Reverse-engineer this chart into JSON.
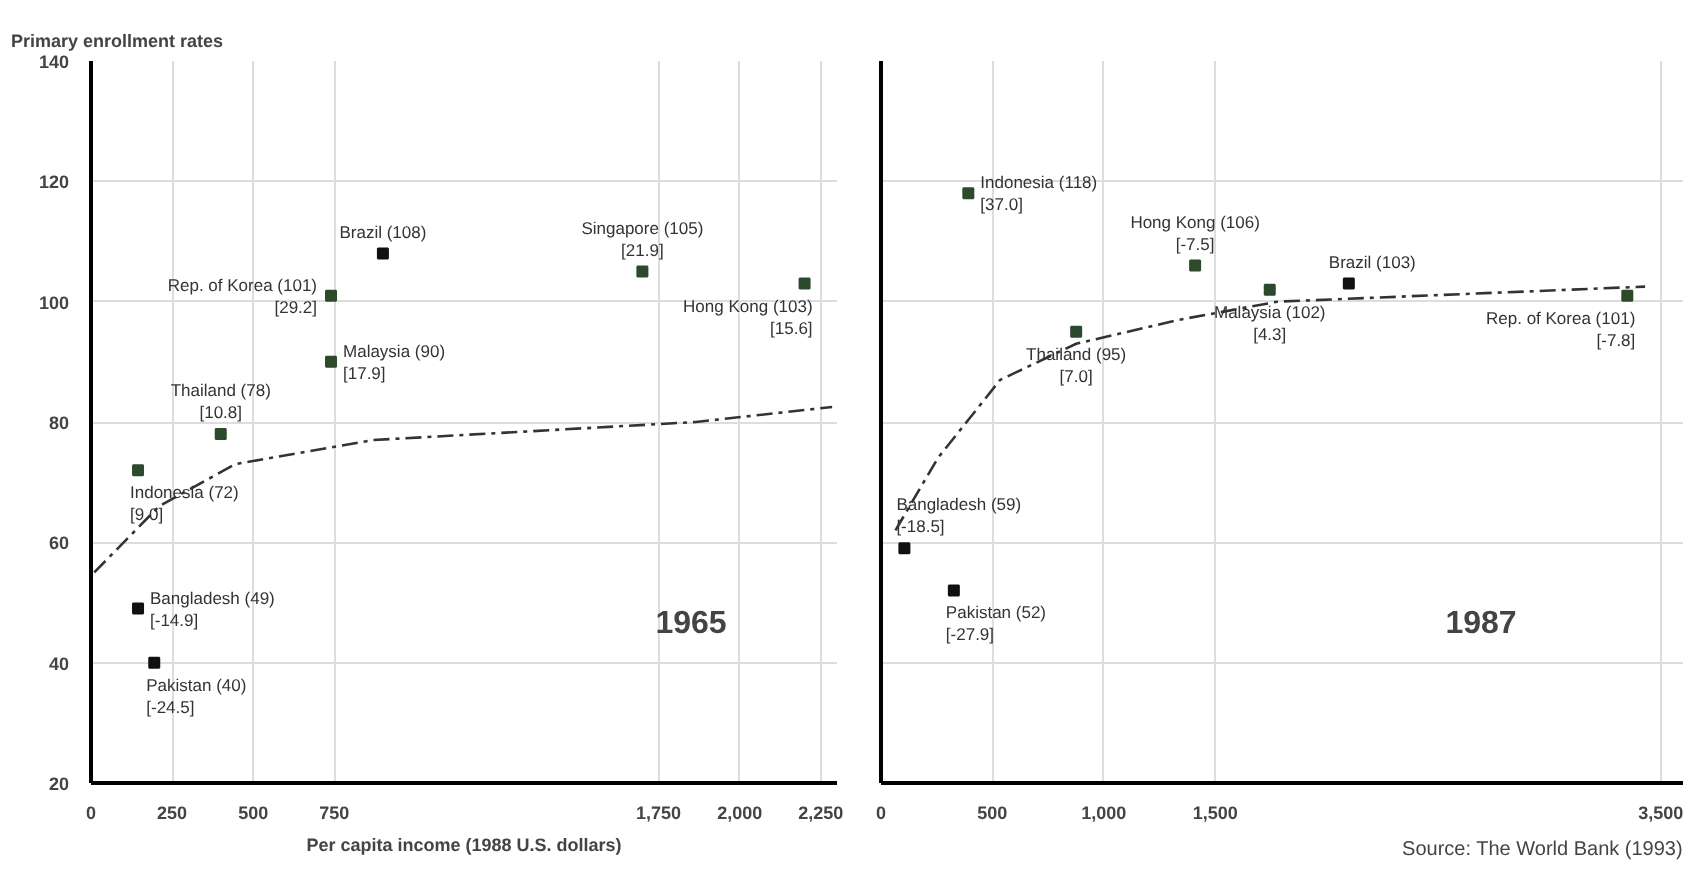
{
  "chart_data": [
    {
      "type": "scatter",
      "ylabel": "Primary enrollment rates",
      "xlabel": "Per capita income (1988 U.S. dollars)",
      "annotations": [
        "1965"
      ],
      "xlim": [
        0,
        2300
      ],
      "xticks": [
        0,
        250,
        500,
        750,
        {
          "value": 1750,
          "label": "1,750"
        },
        {
          "value": 2000,
          "label": "2,000"
        },
        {
          "value": 2250,
          "label": "2,250"
        }
      ],
      "ylim": [
        20,
        140
      ],
      "yticks": [
        20,
        40,
        60,
        80,
        100,
        120,
        140
      ],
      "grid": true,
      "marker": "square",
      "series": [
        {
          "x": [
            145,
            740,
            900,
            1700,
            2200,
            740,
            400,
            145,
            195
          ],
          "values": [
            72,
            101,
            108,
            105,
            103,
            90,
            78,
            49,
            40
          ],
          "colors": [
            "#2d4a2d",
            "#2d4a2d",
            "#111111",
            "#2d4a2d",
            "#2d4a2d",
            "#2d4a2d",
            "#2d4a2d",
            "#111111",
            "#111111"
          ],
          "value_labels": [
            "Indonesia (72)\n[9.0]",
            "Rep. of Korea (101)\n[29.2]",
            "Brazil (108)",
            "Singapore (105)\n[21.9]",
            "Hong Kong (103)\n[15.6]",
            "Malaysia (90)\n[17.9]",
            "Thailand (78)\n[10.8]",
            "Bangladesh (49)\n[-14.9]",
            "Pakistan (40)\n[-24.5]"
          ]
        },
        {
          "type": "line",
          "marker": "none",
          "line_style": "dashed",
          "color": "#333333",
          "x": [
            10,
            210,
            445,
            870,
            1865,
            2285
          ],
          "values": [
            55,
            66,
            73,
            77,
            80,
            82.5
          ]
        }
      ]
    },
    {
      "type": "scatter",
      "annotations": [
        "1987",
        "Source: The World Bank (1993)"
      ],
      "tick_labels": "x",
      "xlim": [
        0,
        3600
      ],
      "xticks": [
        0,
        500,
        {
          "value": 1000,
          "label": "1,000"
        },
        {
          "value": 1500,
          "label": "1,500"
        },
        {
          "value": 3500,
          "label": "3,500"
        }
      ],
      "ylim": [
        20,
        140
      ],
      "yticks": [
        20,
        40,
        60,
        80,
        100,
        120,
        140
      ],
      "grid": true,
      "marker": "square",
      "series": [
        {
          "x": [
            392,
            1410,
            876,
            1745,
            2100,
            3350,
            105,
            327
          ],
          "values": [
            118,
            106,
            95,
            102,
            103,
            101,
            59,
            52
          ],
          "colors": [
            "#2d4a2d",
            "#2d4a2d",
            "#2d4a2d",
            "#2d4a2d",
            "#111111",
            "#2d4a2d",
            "#111111",
            "#111111"
          ],
          "value_labels": [
            "Indonesia (118)\n[37.0]",
            "Hong Kong (106)\n[-7.5]",
            "Thailand (95)\n[7.0]",
            "Malaysia (102)\n[4.3]",
            "Brazil (103)",
            "Rep. of Korea (101)\n[-7.8]",
            "Bangladesh (59)\n[-18.5]",
            "Pakistan (52)\n[-27.9]"
          ]
        },
        {
          "type": "line",
          "marker": "none",
          "line_style": "dashed",
          "color": "#333333",
          "x": [
            65,
            255,
            535,
            876,
            1340,
            1780,
            3430
          ],
          "values": [
            62,
            74,
            87,
            93,
            97,
            100,
            102.5
          ]
        }
      ]
    }
  ]
}
